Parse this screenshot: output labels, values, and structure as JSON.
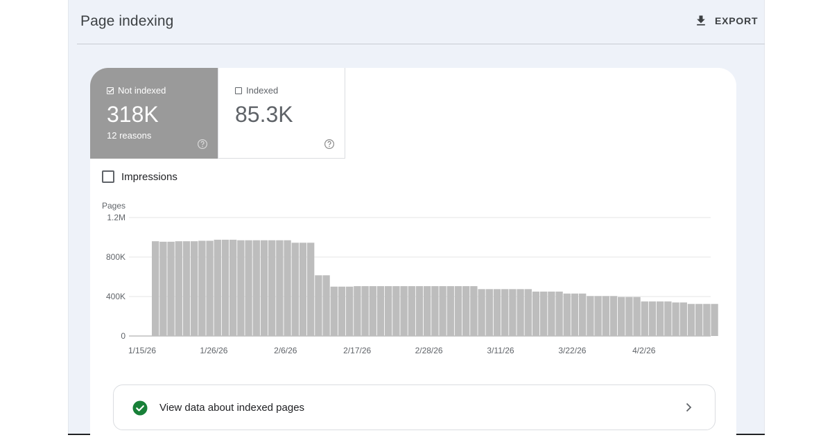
{
  "header": {
    "title": "Page indexing",
    "export_label": "EXPORT"
  },
  "metrics": [
    {
      "label": "Not indexed",
      "value": "318K",
      "sub": "12 reasons",
      "checked": true
    },
    {
      "label": "Indexed",
      "value": "85.3K",
      "checked": false
    }
  ],
  "toggle": {
    "label": "Impressions",
    "checked": false
  },
  "chart_data": {
    "type": "bar",
    "ylabel": "Pages",
    "ylim": [
      0,
      1200000
    ],
    "yticks": [
      {
        "value": 0,
        "label": "0"
      },
      {
        "value": 400000,
        "label": "400K"
      },
      {
        "value": 800000,
        "label": "800K"
      },
      {
        "value": 1200000,
        "label": "1.2M"
      }
    ],
    "xtick_labels": [
      "1/15/26",
      "1/26/26",
      "2/6/26",
      "2/17/26",
      "2/28/26",
      "3/11/26",
      "3/22/26",
      "4/2/26"
    ],
    "xtick_positions": [
      0,
      11,
      22,
      33,
      44,
      55,
      66,
      77
    ],
    "bar_color": "#bdbdbd",
    "series": [
      {
        "values": [
          0,
          0,
          0,
          960000,
          955000,
          955000,
          960000,
          960000,
          960000,
          965000,
          965000,
          975000,
          975000,
          975000,
          970000,
          970000,
          970000,
          970000,
          970000,
          970000,
          970000,
          945000,
          945000,
          945000,
          615000,
          615000,
          500000,
          500000,
          500000,
          505000,
          505000,
          505000,
          505000,
          505000,
          505000,
          505000,
          505000,
          505000,
          505000,
          505000,
          505000,
          505000,
          505000,
          505000,
          505000,
          475000,
          475000,
          475000,
          475000,
          475000,
          475000,
          475000,
          450000,
          450000,
          450000,
          450000,
          430000,
          430000,
          430000,
          405000,
          405000,
          405000,
          405000,
          395000,
          395000,
          395000,
          350000,
          350000,
          350000,
          350000,
          340000,
          340000,
          325000,
          325000,
          325000,
          325000
        ]
      }
    ]
  },
  "footer_link": {
    "label": "View data about indexed pages"
  },
  "colors": {
    "panel_bg": "#eef2f9",
    "selected_metric_bg": "#9a9a9a",
    "success_green": "#188038"
  }
}
